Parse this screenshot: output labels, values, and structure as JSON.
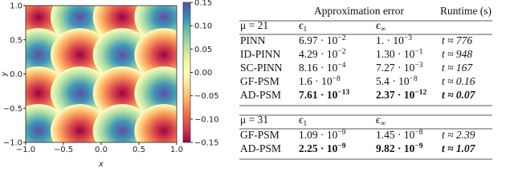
{
  "figure": {
    "xlabel": "x",
    "ylabel": "y",
    "xlim": [
      -1,
      1
    ],
    "ylim": [
      -1,
      1
    ],
    "xticks": [
      {
        "value": -1,
        "label": "−1.0"
      },
      {
        "value": -0.5,
        "label": "−0.5"
      },
      {
        "value": 0,
        "label": "0.0"
      },
      {
        "value": 0.5,
        "label": "0.5"
      },
      {
        "value": 1,
        "label": "1.0"
      }
    ],
    "yticks": [
      {
        "value": -1,
        "label": "−1.0"
      },
      {
        "value": -0.5,
        "label": "−0.5"
      },
      {
        "value": 0,
        "label": "0.0"
      },
      {
        "value": 0.5,
        "label": "0.5"
      },
      {
        "value": 1,
        "label": "1.0"
      }
    ],
    "clim": [
      -0.15,
      0.15
    ],
    "cticks": [
      0.15,
      {
        "value": 0.1,
        "label": "0.10"
      },
      0.05,
      {
        "value": 0,
        "label": "0.00"
      },
      {
        "value": -0.05,
        "label": "−0.05"
      },
      {
        "value": -0.1,
        "label": "−0.10"
      },
      {
        "value": -0.15,
        "label": "−0.15"
      }
    ],
    "colormap": [
      "#9e0142",
      "#d53e4f",
      "#f46d43",
      "#fdae61",
      "#fee08b",
      "#ffffbf",
      "#e6f598",
      "#abdda4",
      "#66c2a5",
      "#3288bd",
      "#5e4fa2"
    ],
    "blob_x": [
      -0.83,
      -0.28,
      0.28,
      0.83
    ],
    "blob_y": [
      0.83,
      0.28,
      -0.28,
      -0.83
    ],
    "z": [
      [
        -0.15,
        0.15,
        -0.15,
        0.15
      ],
      [
        0.15,
        -0.15,
        0.15,
        -0.15
      ],
      [
        -0.15,
        0.15,
        -0.15,
        0.15
      ],
      [
        0.15,
        -0.15,
        0.15,
        -0.15
      ]
    ]
  },
  "table": {
    "header": {
      "group": "Approximation error",
      "runtime": "Runtime (s)"
    },
    "blocks": [
      {
        "mu": "μ = 21",
        "cols": [
          {
            "sym": "ϵ",
            "sub": "1"
          },
          {
            "sym": "ϵ",
            "sub": "∞"
          }
        ],
        "rows": [
          {
            "method": "PINN",
            "e1": {
              "base": "6.97 · 10",
              "exp": "−2"
            },
            "einf": {
              "base": "1. · 10",
              "exp": "−3"
            },
            "runtime": "t ≈ 776",
            "bold": false
          },
          {
            "method": "ID-PINN",
            "e1": {
              "base": "4.29 · 10",
              "exp": "−2"
            },
            "einf": {
              "base": "1.30 · 10",
              "exp": "−1"
            },
            "runtime": "t ≈ 948",
            "bold": false
          },
          {
            "method": "SC-PINN",
            "e1": {
              "base": "8.16 · 10",
              "exp": "−4"
            },
            "einf": {
              "base": "7.27 · 10",
              "exp": "−3"
            },
            "runtime": "t ≈ 167",
            "bold": false
          },
          {
            "method": "GF-PSM",
            "e1": {
              "base": "1.6 · 10",
              "exp": "−8"
            },
            "einf": {
              "base": "5.4 · 10",
              "exp": "−8"
            },
            "runtime": "t ≈ 0.16",
            "bold": false
          },
          {
            "method": "AD-PSM",
            "e1": {
              "base": "7.61 · 10",
              "exp": "−13"
            },
            "einf": {
              "base": "2.37 · 10",
              "exp": "−12"
            },
            "runtime": "t ≈ 0.07",
            "bold": true
          }
        ]
      },
      {
        "mu": "μ = 31",
        "cols": [
          {
            "sym": "ϵ",
            "sub": "1"
          },
          {
            "sym": "ϵ",
            "sub": "∞"
          }
        ],
        "rows": [
          {
            "method": "GF-PSM",
            "e1": {
              "base": "1.09 · 10",
              "exp": "−9"
            },
            "einf": {
              "base": "1.45 · 10",
              "exp": "−8"
            },
            "runtime": "t ≈ 2.39",
            "bold": false
          },
          {
            "method": "AD-PSM",
            "e1": {
              "base": "2.25 · 10",
              "exp": "−9"
            },
            "einf": {
              "base": "9.82 · 10",
              "exp": "−9"
            },
            "runtime": "t ≈ 1.07",
            "bold": true
          }
        ]
      }
    ]
  }
}
